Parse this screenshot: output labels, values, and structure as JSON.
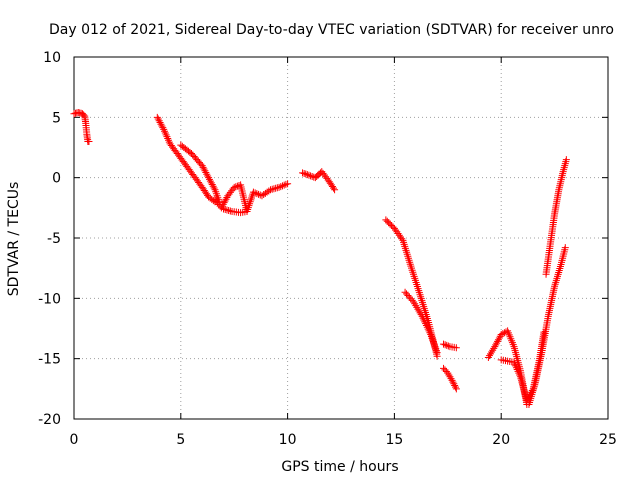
{
  "chart_data": {
    "type": "scatter",
    "title": "Day 012 of 2021, Sidereal Day-to-day VTEC variation (SDTVAR) for receiver unro",
    "xlabel": "GPS time / hours",
    "ylabel": "SDTVAR / TECUs",
    "xlim": [
      0,
      25
    ],
    "ylim": [
      -20,
      10
    ],
    "x_ticks": [
      0,
      5,
      10,
      15,
      20,
      25
    ],
    "y_ticks": [
      -20,
      -15,
      -10,
      -5,
      0,
      5,
      10
    ],
    "x_tick_labels": [
      "0",
      "5",
      "10",
      "15",
      "20",
      "25"
    ],
    "y_tick_labels": [
      "-20",
      "-15",
      "-10",
      "-5",
      "0",
      "5",
      "10"
    ],
    "grid": true,
    "legend": "none",
    "marker": "+",
    "color": "#ff0000",
    "series": [
      {
        "segments": [
          {
            "x": [
              0.0,
              0.2,
              0.4,
              0.5,
              0.55,
              0.6,
              0.65,
              0.7
            ],
            "y": [
              5.3,
              5.4,
              5.3,
              5.1,
              4.5,
              3.6,
              3.0,
              3.0
            ]
          },
          {
            "x": [
              3.9,
              4.2,
              4.5,
              5.0,
              5.5,
              6.0,
              6.3,
              6.6
            ],
            "y": [
              5.0,
              4.0,
              2.8,
              1.6,
              0.4,
              -0.8,
              -1.6,
              -2.0
            ]
          },
          {
            "x": [
              5.0,
              5.5,
              6.0,
              6.3,
              6.6,
              6.8
            ],
            "y": [
              2.7,
              2.0,
              1.0,
              0.0,
              -1.0,
              -2.0
            ]
          },
          {
            "x": [
              6.6,
              6.9,
              7.2,
              7.5,
              7.8,
              8.1,
              8.4,
              8.8,
              9.2,
              9.6,
              10.0
            ],
            "y": [
              -1.8,
              -2.5,
              -1.5,
              -0.8,
              -0.6,
              -2.8,
              -1.2,
              -1.5,
              -1.0,
              -0.8,
              -0.5
            ]
          },
          {
            "x": [
              7.0,
              7.4,
              7.8,
              8.1
            ],
            "y": [
              -2.6,
              -2.8,
              -2.9,
              -2.8
            ]
          },
          {
            "x": [
              10.7,
              11.0,
              11.3,
              11.6,
              11.9,
              12.2
            ],
            "y": [
              0.4,
              0.2,
              0.0,
              0.5,
              -0.2,
              -1.0
            ]
          },
          {
            "x": [
              14.6,
              15.0,
              15.4,
              15.8,
              16.2,
              16.6,
              17.0
            ],
            "y": [
              -3.5,
              -4.2,
              -5.2,
              -7.5,
              -9.7,
              -12.0,
              -14.8
            ]
          },
          {
            "x": [
              15.5,
              15.9,
              16.3,
              16.7,
              17.0
            ],
            "y": [
              -9.5,
              -10.3,
              -11.5,
              -13.0,
              -14.5
            ]
          },
          {
            "x": [
              17.3,
              17.6,
              17.9
            ],
            "y": [
              -13.8,
              -14.0,
              -14.1
            ]
          },
          {
            "x": [
              17.3,
              17.5,
              17.7,
              17.9
            ],
            "y": [
              -15.8,
              -16.2,
              -16.8,
              -17.5
            ]
          },
          {
            "x": [
              19.4,
              19.7,
              20.0,
              20.3,
              20.6,
              20.9,
              21.2
            ],
            "y": [
              -14.9,
              -14.0,
              -13.0,
              -12.7,
              -14.0,
              -16.0,
              -18.8
            ]
          },
          {
            "x": [
              20.0,
              20.3,
              20.6,
              20.9,
              21.2,
              21.5,
              21.8,
              22.0
            ],
            "y": [
              -15.1,
              -15.2,
              -15.3,
              -16.5,
              -18.5,
              -17.5,
              -15.0,
              -12.8
            ]
          },
          {
            "x": [
              21.3,
              21.6,
              21.9,
              22.2,
              22.5,
              22.8,
              23.0
            ],
            "y": [
              -18.8,
              -17.0,
              -14.5,
              -11.5,
              -9.0,
              -7.2,
              -5.8
            ]
          },
          {
            "x": [
              22.1,
              22.3,
              22.5,
              22.7,
              22.9,
              23.05
            ],
            "y": [
              -8.0,
              -5.5,
              -3.0,
              -1.0,
              0.5,
              1.5
            ]
          }
        ]
      }
    ]
  }
}
